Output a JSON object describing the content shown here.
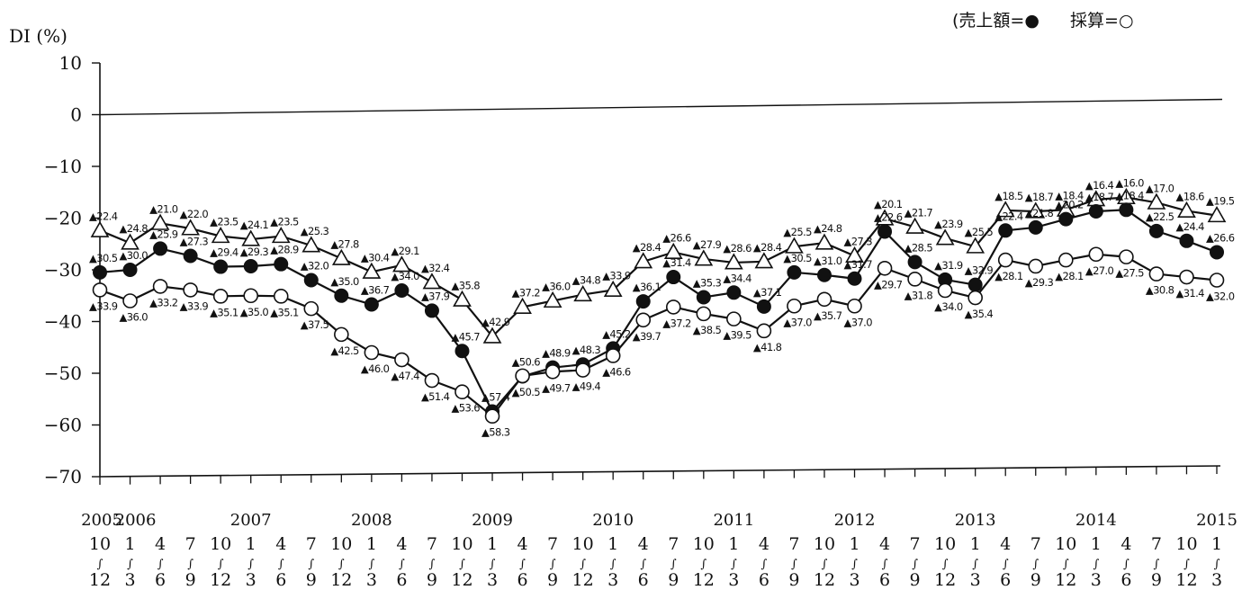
{
  "legend": {
    "open_paren": "(",
    "sales_label": "売上額=",
    "sales_marker": "●",
    "profit_label": "採算=",
    "profit_marker": "○"
  },
  "chart_data": {
    "type": "line",
    "ylabel": "DI (%)",
    "ylim": [
      -70,
      10
    ],
    "yticks": [
      10,
      0,
      -10,
      -20,
      -30,
      -40,
      -50,
      -60,
      -70
    ],
    "ytick_labels": [
      "10",
      "0",
      "−10",
      "−20",
      "−30",
      "−40",
      "−50",
      "−60",
      "−70"
    ],
    "categories": [
      "2005 10-12",
      "2006 1-3",
      "2006 4-6",
      "2006 7-9",
      "2006 10-12",
      "2007 1-3",
      "2007 4-6",
      "2007 7-9",
      "2007 10-12",
      "2008 1-3",
      "2008 4-6",
      "2008 7-9",
      "2008 10-12",
      "2009 1-3",
      "2009 4-6",
      "2009 7-9",
      "2009 10-12",
      "2010 1-3",
      "2010 4-6",
      "2010 7-9",
      "2010 10-12",
      "2011 1-3",
      "2011 4-6",
      "2011 7-9",
      "2011 10-12",
      "2012 1-3",
      "2012 4-6",
      "2012 7-9",
      "2012 10-12",
      "2013 1-3",
      "2013 4-6",
      "2013 7-9",
      "2013 10-12",
      "2014 1-3",
      "2014 4-6",
      "2014 7-9",
      "2014 10-12",
      "2015 1-3"
    ],
    "quarter_start": [
      "10",
      "1",
      "4",
      "7",
      "10",
      "1",
      "4",
      "7",
      "10",
      "1",
      "4",
      "7",
      "10",
      "1",
      "4",
      "7",
      "10",
      "1",
      "4",
      "7",
      "10",
      "1",
      "4",
      "7",
      "10",
      "1",
      "4",
      "7",
      "10",
      "1",
      "4",
      "7",
      "10",
      "1",
      "4",
      "7",
      "10",
      "1"
    ],
    "quarter_sep": "∫",
    "quarter_end": [
      "12",
      "3",
      "6",
      "9",
      "12",
      "3",
      "6",
      "9",
      "12",
      "3",
      "6",
      "9",
      "12",
      "3",
      "6",
      "9",
      "12",
      "3",
      "6",
      "9",
      "12",
      "3",
      "6",
      "9",
      "12",
      "3",
      "6",
      "9",
      "12",
      "3",
      "6",
      "9",
      "12",
      "3",
      "6",
      "9",
      "12",
      "3"
    ],
    "year_labels": [
      {
        "index": 0,
        "text": "2005"
      },
      {
        "index": 1,
        "text": "2006"
      },
      {
        "index": 5,
        "text": "2007"
      },
      {
        "index": 9,
        "text": "2008"
      },
      {
        "index": 13,
        "text": "2009"
      },
      {
        "index": 17,
        "text": "2010"
      },
      {
        "index": 21,
        "text": "2011"
      },
      {
        "index": 25,
        "text": "2012"
      },
      {
        "index": 29,
        "text": "2013"
      },
      {
        "index": 33,
        "text": "2014"
      },
      {
        "index": 37,
        "text": "2015"
      }
    ],
    "series": [
      {
        "marker": "triangle-open",
        "values": [
          -22.4,
          -24.8,
          -21.0,
          -22.0,
          -23.5,
          -24.1,
          -23.5,
          -25.3,
          -27.8,
          -30.4,
          -29.1,
          -32.4,
          -35.8,
          -42.9,
          -37.2,
          -36.0,
          -34.8,
          -33.9,
          -28.4,
          -26.6,
          -27.9,
          -28.6,
          -28.4,
          -25.5,
          -24.8,
          -27.3,
          -20.1,
          -21.7,
          -23.9,
          -25.5,
          -18.5,
          -18.7,
          -18.4,
          -16.4,
          -16.0,
          -17.0,
          -18.6,
          -19.5
        ],
        "labels": [
          "▲22.4",
          "▲24.8",
          "▲21.0",
          "▲22.0",
          "▲23.5",
          "▲24.1",
          "▲23.5",
          "▲25.3",
          "▲27.8",
          "▲30.4",
          "▲29.1",
          "▲32.4",
          "▲35.8",
          "▲42.9",
          "▲37.2",
          "▲36.0",
          "▲34.8",
          "▲33.9",
          "▲28.4",
          "▲26.6",
          "▲27.9",
          "▲28.6",
          "▲28.4",
          "▲25.5",
          "▲24.8",
          "▲27.3",
          "▲20.1",
          "▲21.7",
          "▲23.9",
          "▲25.5",
          "▲18.5",
          "▲18.7",
          "▲18.4",
          "▲16.4",
          "▲16.0",
          "▲17.0",
          "▲18.6",
          "▲19.5"
        ]
      },
      {
        "name": "売上額",
        "marker": "circle-filled",
        "values": [
          -30.5,
          -30.0,
          -25.9,
          -27.3,
          -29.4,
          -29.3,
          -28.9,
          -32.0,
          -35.0,
          -36.7,
          -34.0,
          -37.9,
          -45.7,
          -57.4,
          -50.6,
          -48.9,
          -48.3,
          -45.2,
          -36.1,
          -31.4,
          -35.3,
          -34.4,
          -37.1,
          -30.5,
          -31.0,
          -31.7,
          -22.6,
          -28.5,
          -31.9,
          -32.9,
          -22.4,
          -21.8,
          -20.2,
          -18.7,
          -18.4,
          -22.5,
          -24.4,
          -26.6
        ],
        "labels": [
          "▲30.5",
          "▲30.0",
          "▲25.9",
          "▲27.3",
          "▲29.4",
          "▲29.3",
          "▲28.9",
          "▲32.0",
          "▲35.0",
          "▲36.7",
          "▲34.0",
          "▲37.9",
          "▲45.7",
          "▲57.4",
          "▲50.6",
          "▲48.9",
          "▲48.3",
          "▲45.2",
          "▲36.1",
          "▲31.4",
          "▲35.3",
          "▲34.4",
          "▲37.1",
          "▲30.5",
          "▲31.0",
          "▲31.7",
          "▲22.6",
          "▲28.5",
          "▲31.9",
          "▲32.9",
          "▲22.4",
          "▲21.8",
          "▲20.2",
          "▲18.7",
          "▲18.4",
          "▲22.5",
          "▲24.4",
          "▲26.6"
        ]
      },
      {
        "name": "採算",
        "marker": "circle-open",
        "values": [
          -33.9,
          -36.0,
          -33.2,
          -33.9,
          -35.1,
          -35.0,
          -35.1,
          -37.5,
          -42.5,
          -46.0,
          -47.4,
          -51.4,
          -53.6,
          -58.3,
          -50.5,
          -49.7,
          -49.4,
          -46.6,
          -39.7,
          -37.2,
          -38.5,
          -39.5,
          -41.8,
          -37.0,
          -35.7,
          -37.0,
          -29.7,
          -31.8,
          -34.0,
          -35.4,
          -28.1,
          -29.3,
          -28.1,
          -27.0,
          -27.5,
          -30.8,
          -31.4,
          -32.0
        ],
        "labels": [
          "▲33.9",
          "▲36.0",
          "▲33.2",
          "▲33.9",
          "▲35.1",
          "▲35.0",
          "▲35.1",
          "▲37.5",
          "▲42.5",
          "▲46.0",
          "▲47.4",
          "▲51.4",
          "▲53.6",
          "▲58.3",
          "▲50.5",
          "▲49.7",
          "▲49.4",
          "▲46.6",
          "▲39.7",
          "▲37.2",
          "▲38.5",
          "▲39.5",
          "▲41.8",
          "▲37.0",
          "▲35.7",
          "▲37.0",
          "▲29.7",
          "▲31.8",
          "▲34.0",
          "▲35.4",
          "▲28.1",
          "▲29.3",
          "▲28.1",
          "▲27.0",
          "▲27.5",
          "▲30.8",
          "▲31.4",
          "▲32.0"
        ]
      }
    ],
    "grid": false,
    "legend_position": "top-right"
  }
}
